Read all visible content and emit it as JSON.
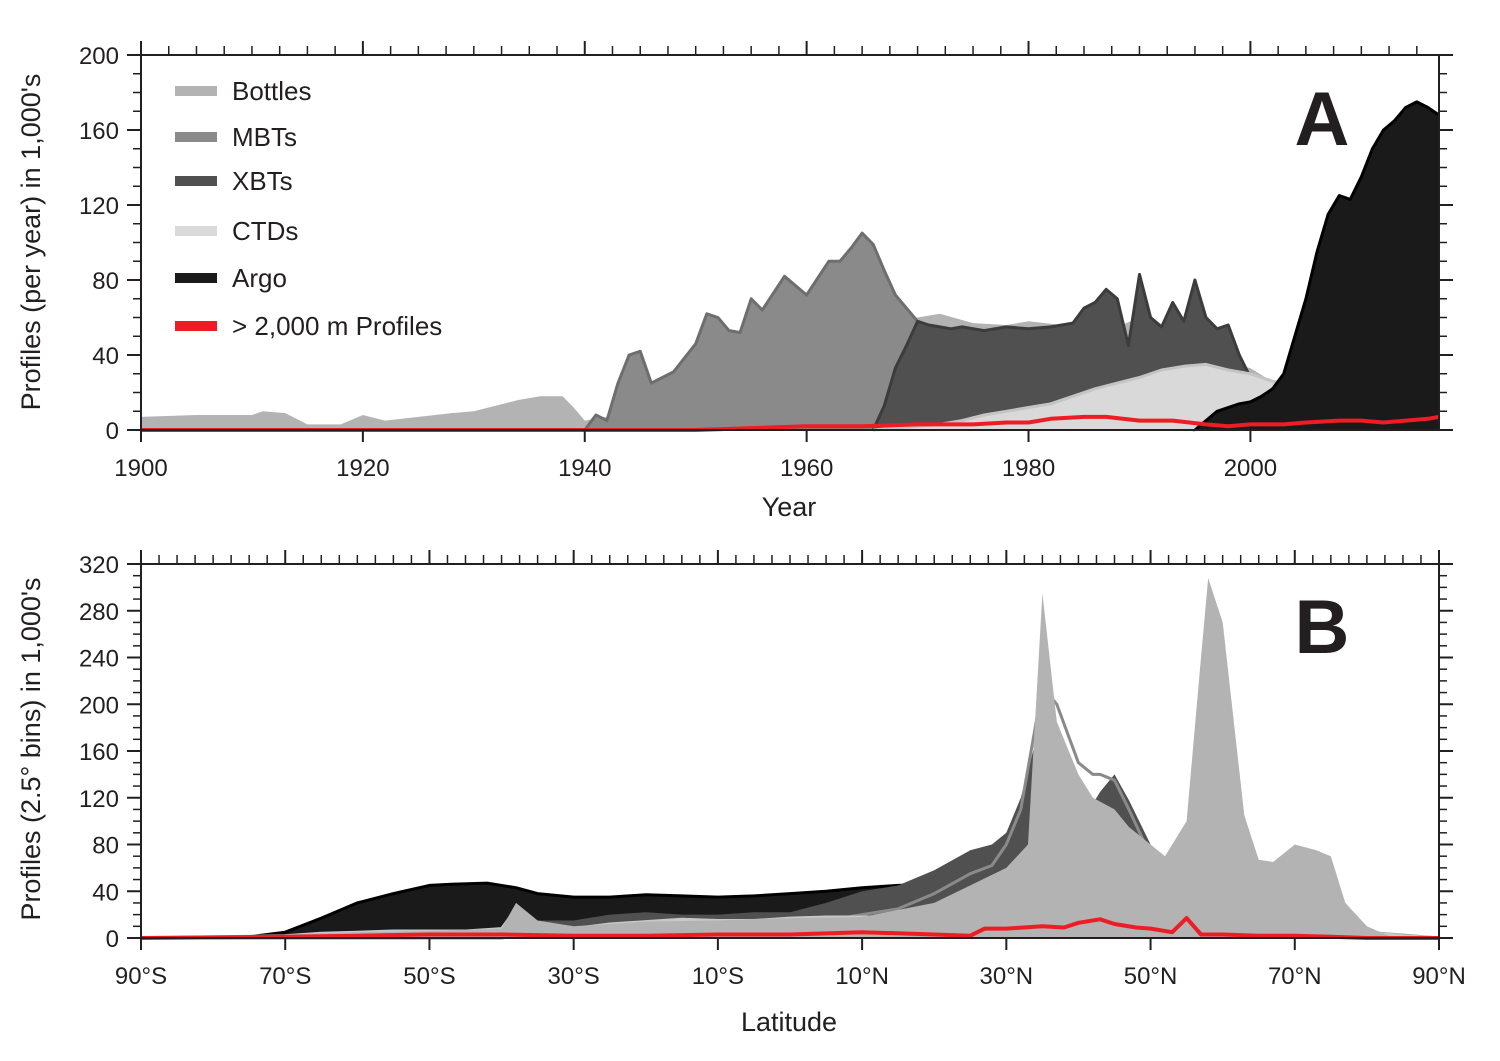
{
  "chart_data": [
    {
      "panel": "A",
      "type": "area",
      "xlabel": "Year",
      "ylabel": "Profiles (per year) in 1,000's",
      "xlim": [
        1900,
        2017
      ],
      "ylim": [
        0,
        200
      ],
      "xticks": [
        1900,
        1920,
        1940,
        1960,
        1980,
        2000
      ],
      "xtick_labels": [
        "1900",
        "1920",
        "1940",
        "1960",
        "1980",
        "2000"
      ],
      "yticks": [
        0,
        40,
        80,
        120,
        160,
        200
      ],
      "ytick_labels": [
        "0",
        "40",
        "80",
        "120",
        "160",
        "200"
      ],
      "legend": {
        "position": "top-left",
        "entries": [
          {
            "label": "Bottles",
            "color": "#b3b3b3"
          },
          {
            "label": "MBTs",
            "color": "#8a8a8a"
          },
          {
            "label": "XBTs",
            "color": "#505050"
          },
          {
            "label": "CTDs",
            "color": "#d9d9d9"
          },
          {
            "label": "Argo",
            "color": "#1a1a1a"
          },
          {
            "label": "> 2,000 m Profiles",
            "color": "#ee1c25"
          }
        ]
      },
      "series": [
        {
          "name": "Bottles",
          "color": "#b3b3b3",
          "x": [
            1900,
            1905,
            1910,
            1911,
            1913,
            1915,
            1918,
            1920,
            1922,
            1925,
            1928,
            1930,
            1932,
            1934,
            1936,
            1938,
            1939,
            1940,
            1942,
            1945,
            1948,
            1950,
            1952,
            1955,
            1958,
            1960,
            1962,
            1964,
            1966,
            1968,
            1970,
            1972,
            1975,
            1978,
            1980,
            1983,
            1986,
            1988,
            1990,
            1992,
            1995,
            1998,
            2000,
            2003,
            2006,
            2010,
            2013,
            2017
          ],
          "values": [
            7,
            8,
            8,
            10,
            9,
            3,
            3,
            8,
            5,
            7,
            9,
            10,
            13,
            16,
            18,
            18,
            12,
            5,
            7,
            8,
            12,
            16,
            22,
            28,
            34,
            38,
            42,
            48,
            55,
            58,
            60,
            62,
            57,
            56,
            58,
            56,
            57,
            55,
            60,
            45,
            40,
            36,
            33,
            22,
            18,
            14,
            8,
            5
          ]
        },
        {
          "name": "MBTs",
          "color": "#8a8a8a",
          "x": [
            1940,
            1941,
            1942,
            1943,
            1944,
            1945,
            1946,
            1948,
            1950,
            1951,
            1952,
            1953,
            1954,
            1955,
            1956,
            1958,
            1960,
            1962,
            1963,
            1964,
            1965,
            1966,
            1967,
            1968,
            1970,
            1972,
            1974,
            1976,
            1978,
            1980,
            1982,
            1984,
            1985,
            1986,
            1987,
            1988,
            1989,
            1990,
            1991,
            1992,
            1994,
            1995
          ],
          "values": [
            0,
            8,
            5,
            25,
            40,
            42,
            25,
            31,
            46,
            62,
            60,
            53,
            52,
            70,
            64,
            82,
            72,
            90,
            90,
            97,
            105,
            99,
            85,
            72,
            58,
            42,
            34,
            36,
            38,
            35,
            22,
            40,
            30,
            45,
            38,
            25,
            20,
            12,
            8,
            3,
            1,
            0
          ]
        },
        {
          "name": "XBTs",
          "color": "#505050",
          "x": [
            1966,
            1967,
            1968,
            1969,
            1970,
            1971,
            1972,
            1973,
            1974,
            1976,
            1978,
            1980,
            1982,
            1984,
            1985,
            1986,
            1987,
            1988,
            1989,
            1990,
            1991,
            1992,
            1993,
            1994,
            1995,
            1996,
            1997,
            1998,
            1999,
            2000,
            2002,
            2004,
            2006,
            2008,
            2010,
            2012,
            2014,
            2016,
            2017
          ],
          "values": [
            0,
            13,
            33,
            45,
            58,
            56,
            55,
            54,
            55,
            53,
            55,
            54,
            55,
            57,
            65,
            68,
            75,
            70,
            45,
            83,
            60,
            55,
            68,
            58,
            80,
            60,
            54,
            56,
            40,
            28,
            25,
            26,
            28,
            25,
            24,
            21,
            18,
            17,
            16
          ]
        },
        {
          "name": "CTDs",
          "color": "#d9d9d9",
          "x": [
            1966,
            1968,
            1970,
            1972,
            1974,
            1976,
            1978,
            1980,
            1982,
            1984,
            1986,
            1988,
            1990,
            1992,
            1994,
            1996,
            1998,
            2000,
            2002,
            2004,
            2006,
            2008,
            2010,
            2012,
            2014,
            2016,
            2017
          ],
          "values": [
            0,
            1,
            2,
            3,
            5,
            8,
            10,
            12,
            14,
            18,
            22,
            25,
            28,
            32,
            34,
            35,
            32,
            30,
            26,
            24,
            22,
            20,
            18,
            17,
            16,
            15,
            15
          ]
        },
        {
          "name": "Argo",
          "color": "#1a1a1a",
          "x": [
            1995,
            1997,
            1999,
            2000,
            2001,
            2002,
            2003,
            2004,
            2005,
            2006,
            2007,
            2008,
            2009,
            2010,
            2011,
            2012,
            2013,
            2014,
            2015,
            2016,
            2017
          ],
          "values": [
            0,
            10,
            14,
            15,
            18,
            22,
            30,
            50,
            70,
            95,
            115,
            125,
            123,
            135,
            150,
            160,
            165,
            172,
            175,
            172,
            168
          ]
        },
        {
          "name": "> 2,000 m Profiles",
          "color": "#ee1c25",
          "x": [
            1900,
            1950,
            1955,
            1960,
            1965,
            1970,
            1975,
            1978,
            1980,
            1982,
            1985,
            1987,
            1990,
            1993,
            1996,
            1998,
            2000,
            2003,
            2005,
            2008,
            2010,
            2012,
            2014,
            2016,
            2017
          ],
          "values": [
            0,
            0,
            1,
            2,
            2,
            3,
            3,
            4,
            4,
            6,
            7,
            7,
            5,
            5,
            3,
            2,
            3,
            3,
            4,
            5,
            5,
            4,
            5,
            6,
            7
          ]
        }
      ]
    },
    {
      "panel": "B",
      "type": "area",
      "xlabel": "Latitude",
      "ylabel": "Profiles (2.5° bins) in 1,000's",
      "xlim": [
        -90,
        90
      ],
      "ylim": [
        0,
        320
      ],
      "xticks": [
        -90,
        -70,
        -50,
        -30,
        -10,
        10,
        30,
        50,
        70,
        90
      ],
      "xtick_labels": [
        "90°S",
        "70°S",
        "50°S",
        "30°S",
        "10°S",
        "10°N",
        "30°N",
        "50°N",
        "70°N",
        "90°N"
      ],
      "yticks": [
        0,
        40,
        80,
        120,
        160,
        200,
        240,
        280,
        320
      ],
      "ytick_labels": [
        "0",
        "40",
        "80",
        "120",
        "160",
        "200",
        "240",
        "280",
        "320"
      ],
      "series": [
        {
          "name": "Argo",
          "color": "#1a1a1a",
          "x": [
            -90,
            -75,
            -70,
            -65,
            -60,
            -55,
            -50,
            -47,
            -42,
            -38,
            -35,
            -30,
            -25,
            -20,
            -15,
            -10,
            -5,
            0,
            5,
            10,
            15,
            20,
            25,
            30,
            33,
            35,
            38,
            40,
            42,
            45,
            47,
            50,
            55,
            58,
            60,
            62,
            65,
            70,
            75,
            80,
            85,
            90
          ],
          "values": [
            0,
            1,
            5,
            17,
            30,
            38,
            45,
            46,
            47,
            43,
            38,
            35,
            35,
            37,
            36,
            35,
            36,
            38,
            40,
            43,
            45,
            46,
            47,
            50,
            48,
            45,
            52,
            58,
            50,
            40,
            30,
            25,
            22,
            20,
            17,
            12,
            5,
            2,
            1,
            0,
            0,
            0
          ]
        },
        {
          "name": "XBTs",
          "color": "#505050",
          "x": [
            -90,
            -40,
            -38,
            -35,
            -30,
            -25,
            -20,
            -15,
            -10,
            -5,
            0,
            5,
            10,
            15,
            20,
            25,
            28,
            30,
            32,
            35,
            37,
            40,
            42,
            43,
            45,
            47,
            50,
            52,
            55,
            57,
            60,
            62,
            65,
            70,
            75,
            80,
            90
          ],
          "values": [
            0,
            0,
            10,
            15,
            15,
            20,
            22,
            20,
            20,
            22,
            22,
            30,
            40,
            45,
            58,
            75,
            80,
            90,
            120,
            190,
            170,
            130,
            115,
            125,
            140,
            118,
            80,
            62,
            45,
            35,
            12,
            6,
            2,
            0,
            0,
            0,
            0
          ]
        },
        {
          "name": "MBTs",
          "color": "#8a8a8a",
          "x": [
            -90,
            -40,
            -38,
            -35,
            -30,
            -25,
            -20,
            -15,
            -10,
            -5,
            0,
            5,
            10,
            15,
            20,
            25,
            28,
            30,
            32,
            35,
            37,
            40,
            42,
            43,
            45,
            47,
            50,
            52,
            55,
            57,
            60,
            62,
            65,
            70,
            75,
            80,
            90
          ],
          "values": [
            0,
            0,
            2,
            5,
            5,
            6,
            7,
            8,
            9,
            10,
            12,
            15,
            20,
            25,
            38,
            55,
            62,
            80,
            110,
            215,
            200,
            150,
            140,
            140,
            135,
            110,
            70,
            55,
            70,
            60,
            35,
            20,
            10,
            25,
            15,
            5,
            0
          ]
        },
        {
          "name": "CTDs",
          "color": "#d9d9d9",
          "x": [
            -90,
            -70,
            -65,
            -60,
            -55,
            -50,
            -45,
            -40,
            -38,
            -35,
            -30,
            -25,
            -20,
            -15,
            -10,
            -5,
            0,
            5,
            10,
            15,
            20,
            25,
            30,
            33,
            35,
            38,
            40,
            42,
            45,
            47,
            50,
            52,
            55,
            57,
            60,
            62,
            65,
            70,
            75,
            80,
            85,
            90
          ],
          "values": [
            0,
            2,
            4,
            5,
            6,
            6,
            6,
            8,
            25,
            10,
            8,
            12,
            14,
            16,
            15,
            15,
            17,
            18,
            18,
            18,
            14,
            20,
            30,
            45,
            70,
            55,
            60,
            75,
            65,
            35,
            30,
            20,
            25,
            20,
            20,
            15,
            10,
            20,
            10,
            5,
            2,
            0
          ]
        },
        {
          "name": "Bottles",
          "color": "#b3b3b3",
          "x": [
            -90,
            -70,
            -60,
            -50,
            -40,
            -38,
            -35,
            -30,
            -20,
            -10,
            0,
            10,
            20,
            25,
            30,
            33,
            35,
            37,
            40,
            42,
            45,
            47,
            50,
            52,
            55,
            57,
            58,
            60,
            62,
            63,
            65,
            67,
            70,
            73,
            75,
            77,
            80,
            83,
            85,
            90
          ],
          "values": [
            0,
            3,
            5,
            6,
            8,
            30,
            15,
            10,
            14,
            15,
            17,
            18,
            30,
            45,
            60,
            80,
            295,
            185,
            140,
            120,
            110,
            95,
            80,
            70,
            100,
            240,
            308,
            270,
            160,
            105,
            67,
            65,
            80,
            75,
            70,
            30,
            10,
            2,
            0,
            0
          ]
        },
        {
          "name": "> 2,000 m Profiles",
          "color": "#ee1c25",
          "x": [
            -90,
            -70,
            -60,
            -50,
            -40,
            -30,
            -20,
            -10,
            0,
            10,
            20,
            25,
            27,
            30,
            35,
            38,
            40,
            43,
            45,
            48,
            50,
            53,
            55,
            57,
            60,
            65,
            70,
            75,
            80,
            90
          ],
          "values": [
            0,
            1,
            2,
            3,
            3,
            2,
            2,
            3,
            3,
            5,
            3,
            2,
            8,
            8,
            10,
            9,
            13,
            16,
            12,
            9,
            8,
            5,
            17,
            3,
            3,
            2,
            2,
            1,
            0,
            0
          ]
        }
      ]
    }
  ],
  "panels": {
    "a": {
      "letter": "A",
      "xlabel": "Year",
      "ylabel": "Profiles (per year) in 1,000's",
      "legend": [
        {
          "label": "Bottles",
          "color": "#b3b3b3"
        },
        {
          "label": "MBTs",
          "color": "#8a8a8a"
        },
        {
          "label": "XBTs",
          "color": "#505050"
        },
        {
          "label": "CTDs",
          "color": "#d9d9d9"
        },
        {
          "label": "Argo",
          "color": "#1a1a1a"
        },
        {
          "label": "> 2,000 m Profiles",
          "color": "#ee1c25"
        }
      ]
    },
    "b": {
      "letter": "B",
      "xlabel": "Latitude",
      "ylabel": "Profiles (2.5° bins) in 1,000's"
    }
  }
}
